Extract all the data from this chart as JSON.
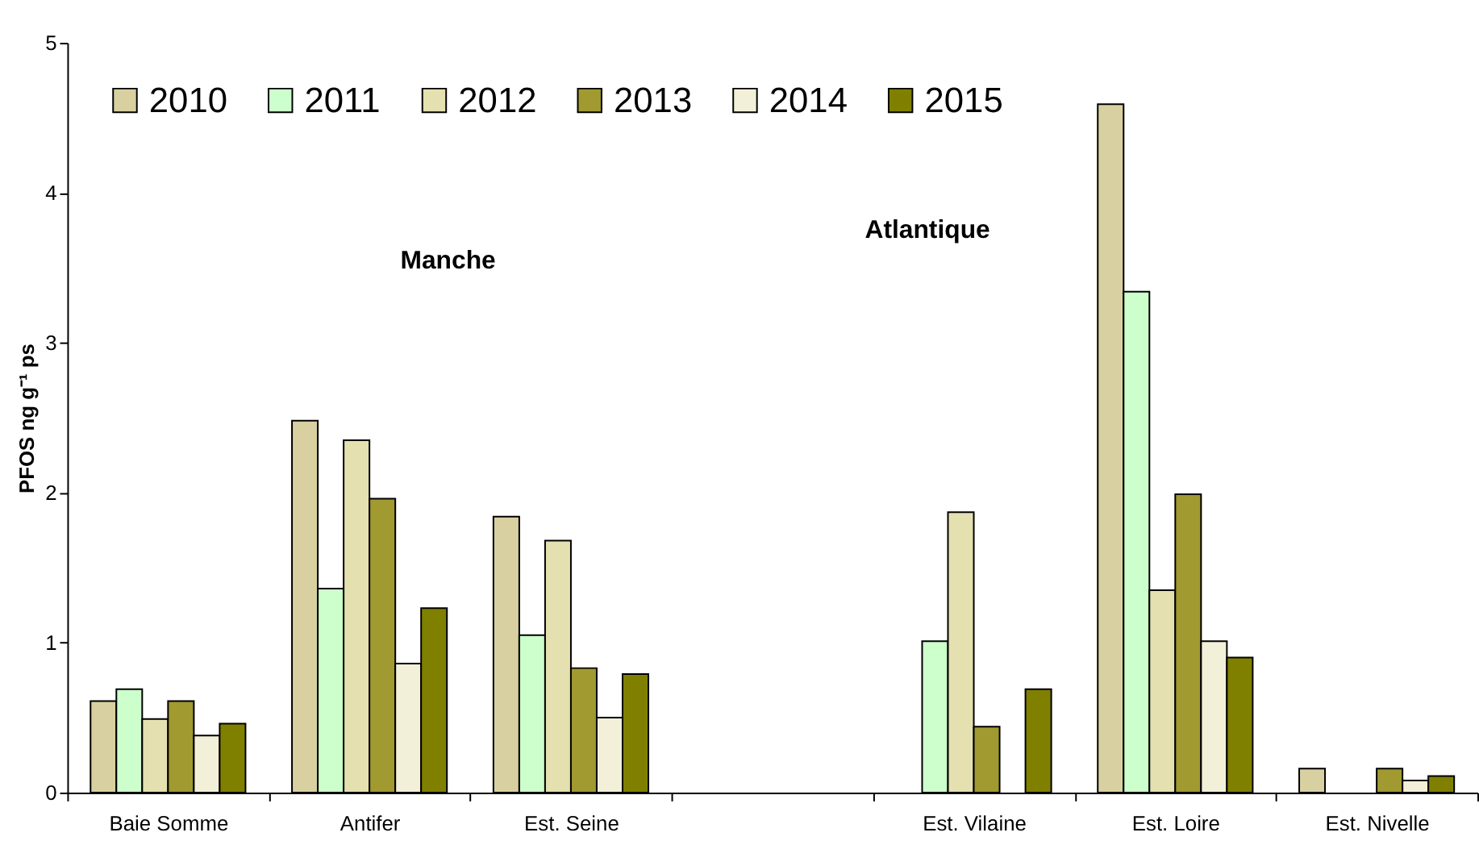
{
  "chart_data": {
    "type": "bar",
    "ylabel": "PFOS ng g⁻¹ ps",
    "categories": [
      "Baie Somme",
      "Antifer",
      "Est. Seine",
      null,
      "Est. Vilaine",
      "Est. Loire",
      "Est. Nivelle"
    ],
    "series": [
      {
        "name": "2010",
        "color": "#d8d0a0",
        "values": [
          0.61,
          2.48,
          1.84,
          null,
          null,
          4.59,
          0.16
        ]
      },
      {
        "name": "2011",
        "color": "#ccffcc",
        "values": [
          0.69,
          1.36,
          1.05,
          null,
          1.01,
          3.34,
          null
        ]
      },
      {
        "name": "2012",
        "color": "#e4e0b0",
        "values": [
          0.49,
          2.35,
          1.68,
          null,
          1.87,
          1.35,
          null
        ]
      },
      {
        "name": "2013",
        "color": "#a09a30",
        "values": [
          0.61,
          1.96,
          0.83,
          null,
          0.44,
          1.99,
          0.16
        ]
      },
      {
        "name": "2014",
        "color": "#f2f0d8",
        "values": [
          0.38,
          0.86,
          0.5,
          null,
          null,
          1.01,
          0.08
        ]
      },
      {
        "name": "2015",
        "color": "#808000",
        "values": [
          0.46,
          1.23,
          0.79,
          null,
          0.69,
          0.9,
          0.11
        ]
      }
    ],
    "annotations": [
      "Manche",
      "Atlantique"
    ],
    "ylim": [
      0,
      5
    ],
    "yticks": [
      0,
      1,
      2,
      3,
      4,
      5
    ],
    "grid": false,
    "legend": "top left"
  }
}
